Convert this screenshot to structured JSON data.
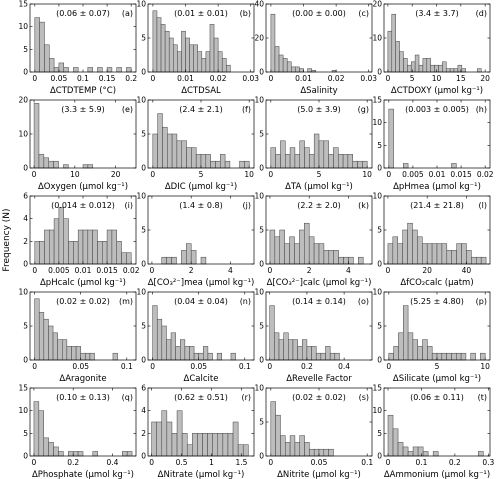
{
  "figure": {
    "ylabel": "Frequency (N)"
  },
  "chart_data": [
    {
      "type": "bar",
      "title": "",
      "stat": "(0.06 ± 0.07)",
      "tag": "(a)",
      "xlabel": "ΔCTDTEMP (°C)",
      "xlim": [
        -0.01,
        0.21
      ],
      "ylim": [
        0,
        15
      ],
      "xticks": [
        0,
        0.05,
        0.1,
        0.15,
        0.2
      ],
      "xtick_labels": [
        "0",
        "0.05",
        "0.1",
        "0.15",
        "0.2"
      ],
      "yticks": [
        0,
        5,
        10,
        15
      ],
      "bin_width": 0.01,
      "bin_start": 0,
      "values": [
        12,
        11,
        6,
        3,
        1,
        2,
        1,
        0,
        1,
        0,
        0,
        1,
        0,
        1,
        0,
        1,
        0,
        1,
        0,
        1
      ]
    },
    {
      "type": "bar",
      "title": "",
      "stat": "(0.01 ± 0.01)",
      "tag": "(b)",
      "xlabel": "ΔCTDSAL",
      "xlim": [
        -0.0015,
        0.031
      ],
      "ylim": [
        0,
        10
      ],
      "xticks": [
        0,
        0.01,
        0.02,
        0.03
      ],
      "xtick_labels": [
        "0",
        "0.01",
        "0.02",
        "0.03"
      ],
      "yticks": [
        0,
        5,
        10
      ],
      "bin_width": 0.00125,
      "bin_start": 0,
      "values": [
        9,
        8,
        7,
        6,
        5,
        4,
        3,
        6,
        5,
        4,
        4,
        3,
        2,
        3,
        7,
        5,
        3,
        2,
        1,
        0,
        0,
        0,
        0,
        0
      ]
    },
    {
      "type": "bar",
      "title": "",
      "stat": "(0.00 ± 0.00)",
      "tag": "(c)",
      "xlabel": "ΔSalinity",
      "xlim": [
        -0.0015,
        0.031
      ],
      "ylim": [
        0,
        40
      ],
      "xticks": [
        0,
        0.01,
        0.02,
        0.03
      ],
      "xtick_labels": [
        "0",
        "0.01",
        "0.02",
        "0.03"
      ],
      "yticks": [
        0,
        20,
        40
      ],
      "bin_width": 0.00125,
      "bin_start": 0,
      "values": [
        34,
        15,
        10,
        8,
        6,
        3,
        3,
        2,
        0,
        2,
        1,
        0,
        0,
        0,
        0,
        1,
        0,
        0,
        0,
        0,
        0,
        0,
        0,
        0
      ]
    },
    {
      "type": "bar",
      "title": "",
      "stat": "(3.4 ± 3.7)",
      "tag": "(d)",
      "xlabel": "ΔCTDOXY (μmol kg⁻¹)",
      "xlim": [
        -0.8,
        21
      ],
      "ylim": [
        0,
        20
      ],
      "xticks": [
        0,
        5,
        10,
        15,
        20
      ],
      "xtick_labels": [
        "0",
        "5",
        "10",
        "15",
        "20"
      ],
      "yticks": [
        0,
        10,
        20
      ],
      "bin_width": 0.8,
      "bin_start": 0,
      "values": [
        12,
        17,
        9,
        6,
        4,
        2,
        3,
        5,
        2,
        4,
        4,
        2,
        2,
        2,
        3,
        1,
        1,
        1,
        2,
        1,
        0,
        0,
        0,
        1
      ]
    },
    {
      "type": "bar",
      "title": "",
      "stat": "(3.3 ± 5.9)",
      "tag": "(e)",
      "xlabel": "ΔOxygen (μmol kg⁻¹)",
      "xlim": [
        -1,
        25
      ],
      "ylim": [
        0,
        20
      ],
      "xticks": [
        0,
        10,
        20
      ],
      "xtick_labels": [
        "0",
        "10",
        "20"
      ],
      "yticks": [
        0,
        10,
        20
      ],
      "bin_width": 1.2,
      "bin_start": 0,
      "values": [
        19,
        4,
        3,
        2,
        2,
        0,
        1,
        0,
        0,
        0,
        1,
        1,
        0,
        0,
        0,
        0,
        0,
        0,
        0,
        0
      ]
    },
    {
      "type": "bar",
      "title": "",
      "stat": "(2.4 ± 2.1)",
      "tag": "(f)",
      "xlabel": "ΔDIC (μmol kg⁻¹)",
      "xlim": [
        -0.5,
        10.5
      ],
      "ylim": [
        0,
        10
      ],
      "xticks": [
        0,
        5,
        10
      ],
      "xtick_labels": [
        "0",
        "5",
        "10"
      ],
      "yticks": [
        0,
        5,
        10
      ],
      "bin_width": 0.5,
      "bin_start": 0,
      "values": [
        5,
        8,
        6,
        5,
        5,
        4,
        4,
        3,
        3,
        2,
        2,
        2,
        1,
        1,
        2,
        1,
        0,
        0,
        1,
        1
      ]
    },
    {
      "type": "bar",
      "title": "",
      "stat": "(5.0 ± 3.9)",
      "tag": "(g)",
      "xlabel": "ΔTA (μmol kg⁻¹)",
      "xlim": [
        -0.5,
        10.5
      ],
      "ylim": [
        0,
        10
      ],
      "xticks": [
        0,
        5,
        10
      ],
      "xtick_labels": [
        "0",
        "5",
        "10"
      ],
      "yticks": [
        0,
        5,
        10
      ],
      "bin_width": 0.5,
      "bin_start": 0,
      "values": [
        3,
        2,
        4,
        2,
        3,
        2,
        4,
        3,
        2,
        5,
        4,
        4,
        2,
        3,
        2,
        2,
        2,
        1,
        1,
        1
      ]
    },
    {
      "type": "bar",
      "title": "",
      "stat": "(0.003 ± 0.005)",
      "tag": "(h)",
      "xlabel": "ΔpHmea (μmol kg⁻¹)",
      "xlim": [
        -0.001,
        0.021
      ],
      "ylim": [
        0,
        15
      ],
      "xticks": [
        0,
        0.005,
        0.01,
        0.015,
        0.02
      ],
      "xtick_labels": [
        "0",
        "0.005",
        "0.01",
        "0.015",
        "0.02"
      ],
      "yticks": [
        0,
        5,
        10,
        15
      ],
      "bin_width": 0.001,
      "bin_start": 0,
      "values": [
        13,
        0,
        0,
        1,
        0,
        0,
        0,
        0,
        0,
        0,
        0,
        0,
        0,
        1,
        0,
        0,
        0,
        0,
        0,
        0
      ]
    },
    {
      "type": "bar",
      "title": "",
      "stat": "(0.014 ± 0.012)",
      "tag": "(i)",
      "xlabel": "ΔpHcalc (μmol kg⁻¹)",
      "xlim": [
        -0.001,
        0.021
      ],
      "ylim": [
        0,
        6
      ],
      "xticks": [
        0,
        0.005,
        0.01,
        0.015,
        0.02
      ],
      "xtick_labels": [
        "0",
        "0.005",
        "0.01",
        "0.015",
        "0.02"
      ],
      "yticks": [
        0,
        2,
        4,
        6
      ],
      "bin_width": 0.001,
      "bin_start": 0,
      "values": [
        2,
        2,
        3,
        3,
        4,
        5,
        4,
        2,
        2,
        3,
        3,
        3,
        3,
        2,
        2,
        3,
        3,
        2,
        1,
        1
      ]
    },
    {
      "type": "bar",
      "title": "",
      "stat": "(1.4 ± 0.8)",
      "tag": "(j)",
      "xlabel": "Δ[CO₃²⁻]mea (μmol kg⁻¹)",
      "xlim": [
        -0.2,
        5.2
      ],
      "ylim": [
        0,
        10
      ],
      "xticks": [
        0,
        2,
        4
      ],
      "xtick_labels": [
        "0",
        "2",
        "4"
      ],
      "yticks": [
        0,
        5,
        10
      ],
      "bin_width": 0.25,
      "bin_start": 0,
      "values": [
        0,
        0,
        1,
        1,
        1,
        0,
        2,
        3,
        2,
        0,
        1,
        0,
        0,
        0,
        0,
        0,
        0,
        0,
        0,
        0
      ]
    },
    {
      "type": "bar",
      "title": "",
      "stat": "(2.2 ± 2.0)",
      "tag": "(k)",
      "xlabel": "Δ[CO₃²⁻]calc (μmol kg⁻¹)",
      "xlim": [
        -0.2,
        5.2
      ],
      "ylim": [
        0,
        10
      ],
      "xticks": [
        0,
        2,
        4
      ],
      "xtick_labels": [
        "0",
        "2",
        "4"
      ],
      "yticks": [
        0,
        5,
        10
      ],
      "bin_width": 0.25,
      "bin_start": 0,
      "values": [
        5,
        4,
        5,
        3,
        4,
        3,
        5,
        6,
        4,
        3,
        3,
        2,
        2,
        2,
        1,
        1,
        1,
        0,
        1,
        0
      ]
    },
    {
      "type": "bar",
      "title": "",
      "stat": "(21.4 ± 21.8)",
      "tag": "(l)",
      "xlabel": "ΔfCO₂calc (μatm)",
      "xlim": [
        -2,
        52
      ],
      "ylim": [
        0,
        10
      ],
      "xticks": [
        0,
        20,
        40
      ],
      "xtick_labels": [
        "0",
        "20",
        "40"
      ],
      "yticks": [
        0,
        5,
        10
      ],
      "bin_width": 2.5,
      "bin_start": 0,
      "values": [
        3,
        4,
        3,
        5,
        6,
        5,
        4,
        3,
        3,
        3,
        3,
        3,
        2,
        2,
        3,
        3,
        2,
        1,
        1,
        1
      ]
    },
    {
      "type": "bar",
      "title": "",
      "stat": "(0.02 ± 0.02)",
      "tag": "(m)",
      "xlabel": "ΔAragonite",
      "xlim": [
        -0.005,
        0.11
      ],
      "ylim": [
        0,
        10
      ],
      "xticks": [
        0,
        0.05,
        0.1
      ],
      "xtick_labels": [
        "0",
        "0.05",
        "0.1"
      ],
      "yticks": [
        0,
        5,
        10
      ],
      "bin_width": 0.005,
      "bin_start": 0,
      "values": [
        9,
        7,
        6,
        5,
        4,
        3,
        3,
        2,
        2,
        2,
        1,
        1,
        1,
        0,
        0,
        0,
        0,
        1,
        0,
        0
      ]
    },
    {
      "type": "bar",
      "title": "",
      "stat": "(0.04 ± 0.04)",
      "tag": "(n)",
      "xlabel": "ΔCalcite",
      "xlim": [
        -0.005,
        0.11
      ],
      "ylim": [
        0,
        10
      ],
      "xticks": [
        0,
        0.05,
        0.1
      ],
      "xtick_labels": [
        "0",
        "0.05",
        "0.1"
      ],
      "yticks": [
        0,
        5,
        10
      ],
      "bin_width": 0.005,
      "bin_start": 0,
      "values": [
        8,
        6,
        5,
        3,
        4,
        2,
        3,
        2,
        2,
        1,
        1,
        2,
        1,
        0,
        1,
        0,
        0,
        1,
        0,
        0
      ]
    },
    {
      "type": "bar",
      "title": "",
      "stat": "(0.14 ± 0.14)",
      "tag": "(o)",
      "xlabel": "ΔRevelle Factor",
      "xlim": [
        -0.02,
        0.55
      ],
      "ylim": [
        0,
        10
      ],
      "xticks": [
        0,
        0.2,
        0.4
      ],
      "xtick_labels": [
        "0",
        "0.2",
        "0.4"
      ],
      "yticks": [
        0,
        5,
        10
      ],
      "bin_width": 0.025,
      "bin_start": 0,
      "values": [
        8,
        4,
        3,
        4,
        3,
        3,
        2,
        3,
        2,
        2,
        1,
        1,
        2,
        1,
        1,
        0,
        0,
        0,
        0,
        0
      ]
    },
    {
      "type": "bar",
      "title": "",
      "stat": "(5.25 ± 4.80)",
      "tag": "(p)",
      "xlabel": "ΔSilicate (μmol kg⁻¹)",
      "xlim": [
        -0.5,
        10.5
      ],
      "ylim": [
        0,
        10
      ],
      "xticks": [
        0,
        5,
        10
      ],
      "xtick_labels": [
        "0",
        "5",
        "10"
      ],
      "yticks": [
        0,
        5,
        10
      ],
      "bin_width": 0.5,
      "bin_start": 0,
      "values": [
        1,
        2,
        4,
        8,
        4,
        3,
        2,
        3,
        2,
        1,
        1,
        1,
        1,
        1,
        1,
        1,
        0,
        1,
        0,
        1
      ]
    },
    {
      "type": "bar",
      "title": "",
      "stat": "(0.10 ± 0.13)",
      "tag": "(q)",
      "xlabel": "ΔPhosphate (μmol kg⁻¹)",
      "xlim": [
        -0.02,
        0.52
      ],
      "ylim": [
        0,
        15
      ],
      "xticks": [
        0,
        0.2,
        0.4
      ],
      "xtick_labels": [
        "0",
        "0.2",
        "0.4"
      ],
      "yticks": [
        0,
        5,
        10,
        15
      ],
      "bin_width": 0.025,
      "bin_start": 0,
      "values": [
        12,
        10,
        4,
        3,
        2,
        1,
        0,
        1,
        1,
        1,
        0,
        0,
        1,
        0,
        0,
        0,
        0,
        0,
        1,
        1
      ]
    },
    {
      "type": "bar",
      "title": "",
      "stat": "(0.62 ± 0.51)",
      "tag": "(r)",
      "xlabel": "ΔNitrate (μmol kg⁻¹)",
      "xlim": [
        -0.06,
        1.71
      ],
      "ylim": [
        0,
        6
      ],
      "xticks": [
        0,
        0.5,
        1,
        1.5
      ],
      "xtick_labels": [
        "0",
        "0.5",
        "1",
        "1.5"
      ],
      "yticks": [
        0,
        2,
        4,
        6
      ],
      "bin_width": 0.085,
      "bin_start": 0,
      "values": [
        3,
        3,
        4,
        3,
        2,
        4,
        2,
        1,
        2,
        2,
        2,
        2,
        2,
        2,
        2,
        2,
        3,
        1,
        1,
        0
      ]
    },
    {
      "type": "bar",
      "title": "",
      "stat": "(0.02 ± 0.02)",
      "tag": "(s)",
      "xlabel": "ΔNitrite (μmol kg⁻¹)",
      "xlim": [
        -0.005,
        0.105
      ],
      "ylim": [
        0,
        10
      ],
      "xticks": [
        0,
        0.05,
        0.1
      ],
      "xtick_labels": [
        "0",
        "0.05",
        "0.1"
      ],
      "yticks": [
        0,
        5,
        10
      ],
      "bin_width": 0.005,
      "bin_start": 0,
      "values": [
        8,
        6,
        3,
        2,
        3,
        2,
        3,
        2,
        1,
        1,
        1,
        1,
        1,
        0,
        0,
        0,
        0,
        0,
        0,
        0
      ]
    },
    {
      "type": "bar",
      "title": "",
      "stat": "(0.06 ± 0.11)",
      "tag": "(t)",
      "xlabel": "ΔAmmonium (μmol kg⁻¹)",
      "xlim": [
        -0.012,
        0.305
      ],
      "ylim": [
        0,
        15
      ],
      "xticks": [
        0,
        0.1,
        0.2,
        0.3
      ],
      "xtick_labels": [
        "0",
        "0.1",
        "0.2",
        "0.3"
      ],
      "yticks": [
        0,
        5,
        10,
        15
      ],
      "bin_width": 0.015,
      "bin_start": 0,
      "values": [
        9,
        6,
        3,
        2,
        1,
        2,
        2,
        1,
        0,
        1,
        0,
        0,
        0,
        0,
        0,
        0,
        0,
        0,
        1,
        0
      ]
    }
  ]
}
